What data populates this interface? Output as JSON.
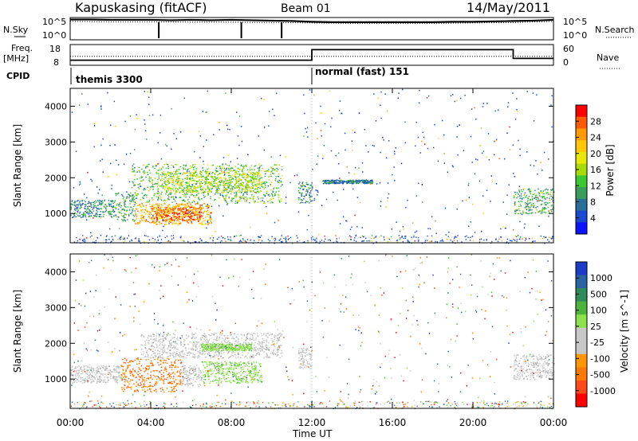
{
  "header": {
    "station": "Kapuskasing (fitACF)",
    "beam": "Beam 01",
    "date": "14/May/2011"
  },
  "left_labels": {
    "nsky": "N.Sky",
    "freq": "Freq.",
    "freq_unit": "[MHz]",
    "cpid": "CPID"
  },
  "right_labels": {
    "nsearch": "N.Search",
    "nave": "Nave"
  },
  "nsky_axis": {
    "ticks": [
      "10^5",
      "10^0"
    ]
  },
  "nsearch_axis": {
    "ticks": [
      "10^5",
      "10^0"
    ]
  },
  "freq_axis": {
    "ticks": [
      "18",
      "8"
    ]
  },
  "nave_axis": {
    "ticks": [
      "60",
      "0"
    ]
  },
  "cpid": {
    "segments": [
      {
        "label": "themis 3300",
        "start": "00:00",
        "end": "12:00"
      },
      {
        "label": "normal (fast) 151",
        "start": "12:00",
        "end": "24:00"
      }
    ]
  },
  "time_axis": {
    "label": "Time UT",
    "ticks": [
      "00:00",
      "04:00",
      "08:00",
      "12:00",
      "16:00",
      "20:00",
      "00:00"
    ]
  },
  "range_axis": {
    "label": "Slant Range [km]",
    "ticks": [
      "1000",
      "2000",
      "3000",
      "4000"
    ]
  },
  "power_colorbar": {
    "label": "Power [dB]",
    "ticks": [
      "28",
      "24",
      "20",
      "16",
      "12",
      "8",
      "4"
    ],
    "colors": [
      "#ff0000",
      "#ff5a00",
      "#ff9a00",
      "#ffc800",
      "#e8e800",
      "#a8dc00",
      "#3cc832",
      "#3a9e5a",
      "#2a6e9a",
      "#1a4ad2",
      "#0a14ff"
    ]
  },
  "velocity_colorbar": {
    "label": "Velocity [m s^-1]",
    "ticks": [
      "1000",
      "500",
      "100",
      "25",
      "-25",
      "-100",
      "-500",
      "-1000"
    ],
    "colors": [
      "#1a3cc8",
      "#2a64a0",
      "#2e8c5a",
      "#4cb43c",
      "#8ce24a",
      "#c8c8c8",
      "#c8c8c8",
      "#ff9600",
      "#ff7800",
      "#ff4a1a",
      "#ff0000"
    ]
  },
  "chart_data": [
    {
      "type": "line",
      "panel": "noise",
      "series": [
        {
          "name": "N.Sky",
          "x_hours": [
            0,
            1,
            2,
            3,
            4,
            5,
            6,
            7,
            8,
            9,
            10,
            11,
            12,
            13,
            14,
            15,
            16,
            17,
            18,
            19,
            20,
            21,
            22,
            23,
            24
          ],
          "y_log10": [
            4.9,
            4.9,
            4.8,
            4.8,
            4.8,
            4.7,
            4.8,
            4.7,
            4.8,
            4.7,
            4.6,
            4.5,
            4.3,
            4.2,
            4.2,
            4.2,
            4.2,
            4.2,
            4.2,
            4.3,
            4.3,
            4.4,
            4.5,
            4.6,
            4.8
          ]
        },
        {
          "name": "N.Search",
          "x_hours": [
            0,
            2,
            4,
            6,
            8,
            10,
            12,
            14,
            16,
            18,
            20,
            22,
            24
          ],
          "y_log10": [
            4.4,
            4.3,
            4.3,
            4.2,
            4.2,
            4.1,
            4.0,
            3.9,
            3.9,
            3.9,
            4.0,
            4.1,
            4.4
          ]
        }
      ],
      "ylim_log10": [
        0,
        5
      ]
    },
    {
      "type": "line",
      "panel": "frequency",
      "series": [
        {
          "name": "Freq.",
          "x_hours": [
            0,
            12,
            12,
            22,
            22,
            24
          ],
          "y": [
            10,
            10,
            16,
            16,
            11,
            11
          ]
        },
        {
          "name": "Nave",
          "x_hours": [
            0,
            24
          ],
          "y": [
            25,
            25
          ]
        }
      ],
      "ylim_freq": [
        8,
        18
      ],
      "ylim_nave": [
        0,
        60
      ]
    },
    {
      "type": "heatmap",
      "panel": "power",
      "xlim_hours": [
        0,
        24
      ],
      "ylim_km": [
        180,
        4500
      ],
      "zlim_db": [
        0,
        30
      ],
      "regions": [
        {
          "t0": 0.0,
          "t1": 2.2,
          "r0": 900,
          "r1": 1400,
          "z": 8
        },
        {
          "t0": 2.2,
          "t1": 3.2,
          "r0": 800,
          "r1": 1600,
          "z": 10
        },
        {
          "t0": 3.2,
          "t1": 7.0,
          "r0": 700,
          "r1": 1300,
          "z": 22
        },
        {
          "t0": 4.0,
          "t1": 6.5,
          "r0": 800,
          "r1": 1200,
          "z": 26
        },
        {
          "t0": 3.0,
          "t1": 10.5,
          "r0": 1300,
          "r1": 2400,
          "z": 12
        },
        {
          "t0": 4.5,
          "t1": 9.5,
          "r0": 1600,
          "r1": 2200,
          "z": 16
        },
        {
          "t0": 11.3,
          "t1": 12.0,
          "r0": 1300,
          "r1": 1900,
          "z": 8
        },
        {
          "t0": 12.5,
          "t1": 15.0,
          "r0": 1850,
          "r1": 1950,
          "z": 6
        },
        {
          "t0": 22.0,
          "t1": 24.0,
          "r0": 1000,
          "r1": 1700,
          "z": 10
        }
      ]
    },
    {
      "type": "heatmap",
      "panel": "velocity",
      "xlim_hours": [
        0,
        24
      ],
      "ylim_km": [
        180,
        4500
      ],
      "zlim_ms": [
        -1000,
        1000
      ],
      "regions": [
        {
          "t0": 0.0,
          "t1": 2.5,
          "r0": 900,
          "r1": 1400,
          "z": 0
        },
        {
          "t0": 2.5,
          "t1": 5.5,
          "r0": 650,
          "r1": 1600,
          "z": -300
        },
        {
          "t0": 5.5,
          "t1": 6.5,
          "r0": 800,
          "r1": 1400,
          "z": 0
        },
        {
          "t0": 6.5,
          "t1": 9.5,
          "r0": 900,
          "r1": 1500,
          "z": 150
        },
        {
          "t0": 3.5,
          "t1": 10.5,
          "r0": 1600,
          "r1": 2300,
          "z": 0
        },
        {
          "t0": 6.5,
          "t1": 9.0,
          "r0": 1800,
          "r1": 2000,
          "z": 150
        },
        {
          "t0": 11.3,
          "t1": 12.0,
          "r0": 1300,
          "r1": 1900,
          "z": 0
        },
        {
          "t0": 22.0,
          "t1": 24.0,
          "r0": 1000,
          "r1": 1700,
          "z": 0
        }
      ]
    }
  ]
}
